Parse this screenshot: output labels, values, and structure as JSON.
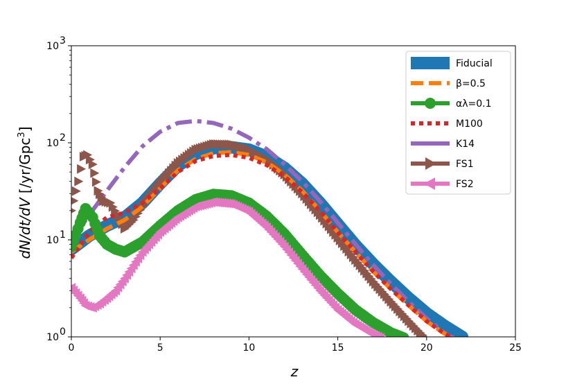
{
  "chart_data": {
    "type": "line",
    "title": "",
    "xlabel": "z",
    "ylabel": "dN/dt/dV [/yr/Gpc³]",
    "ylabel_parts": {
      "italic": "dN/dt/dV",
      "unit_open": " [/yr/Gpc",
      "unit_sup": "3",
      "unit_close": "]"
    },
    "xlim": [
      0,
      25
    ],
    "ylim": [
      1,
      1000
    ],
    "yscale": "log",
    "x_ticks": [
      "0",
      "5",
      "10",
      "15",
      "20",
      "25"
    ],
    "y_ticks": [
      {
        "base": "10",
        "exp": "0"
      },
      {
        "base": "10",
        "exp": "1"
      },
      {
        "base": "10",
        "exp": "2"
      },
      {
        "base": "10",
        "exp": "3"
      }
    ],
    "legend_position": "upper right",
    "series": [
      {
        "name": "Fiducial",
        "style": "solid-thick",
        "color": "#1f77b4",
        "x": [
          0,
          1,
          2,
          3,
          4,
          5,
          6,
          7,
          8,
          9,
          10,
          11,
          12,
          13,
          14,
          15,
          16,
          17,
          18,
          19,
          20,
          21,
          22
        ],
        "y": [
          8,
          11,
          14,
          17,
          24,
          38,
          58,
          77,
          88,
          90,
          85,
          72,
          55,
          38,
          24,
          14.5,
          8.8,
          5.6,
          3.7,
          2.5,
          1.75,
          1.3,
          1.0
        ]
      },
      {
        "name": "β=0.5",
        "style": "dashed",
        "color": "#ff7f0e",
        "x": [
          0,
          1,
          2,
          3,
          4,
          5,
          6,
          7,
          8,
          9,
          10,
          11,
          12,
          13,
          14,
          15,
          16,
          17,
          18,
          19,
          20,
          21,
          21.5
        ],
        "y": [
          7.5,
          10,
          13,
          16,
          22,
          34,
          52,
          68,
          78,
          80,
          75,
          63,
          47,
          32,
          20,
          12,
          7.5,
          4.7,
          3.1,
          2.1,
          1.45,
          1.08,
          0.98
        ]
      },
      {
        "name": "αλ=0.1",
        "style": "circles",
        "color": "#2ca02c",
        "x": [
          0,
          0.5,
          0.8,
          1.2,
          1.6,
          2,
          2.5,
          3,
          4,
          5,
          6,
          7,
          8,
          9,
          10,
          11,
          12,
          13,
          14,
          15,
          16,
          17,
          18,
          18.7
        ],
        "y": [
          8.5,
          15,
          21,
          17,
          11,
          9,
          8,
          7.5,
          9.5,
          14,
          20,
          26,
          29.5,
          28.5,
          24,
          17.5,
          11.5,
          7,
          4.3,
          2.8,
          1.9,
          1.4,
          1.1,
          0.98
        ]
      },
      {
        "name": "M100",
        "style": "dotted",
        "color": "#d62728",
        "x": [
          0,
          1,
          2,
          3,
          4,
          5,
          6,
          7,
          8,
          9,
          10,
          11,
          12,
          13,
          14,
          15,
          16,
          17,
          18,
          19,
          20,
          21,
          21.5
        ],
        "y": [
          6.5,
          12,
          17,
          19,
          24,
          34,
          50,
          65,
          73,
          75,
          70,
          59,
          45,
          31,
          20,
          12,
          7.5,
          4.7,
          3.1,
          2.1,
          1.45,
          1.08,
          0.98
        ]
      },
      {
        "name": "K14",
        "style": "dashdot",
        "color": "#9467bd",
        "x": [
          0,
          1,
          2,
          3,
          4,
          5,
          6,
          7,
          8,
          9,
          10,
          11,
          12,
          13,
          14,
          15,
          16,
          17,
          18,
          19,
          20,
          21,
          21.5
        ],
        "y": [
          9.5,
          18,
          32,
          56,
          92,
          130,
          160,
          168,
          160,
          140,
          113,
          86,
          60,
          40,
          25,
          15,
          9,
          5.5,
          3.5,
          2.3,
          1.55,
          1.1,
          0.98
        ]
      },
      {
        "name": "FS1",
        "style": "arrow-right",
        "color": "#8c564b",
        "x": [
          0,
          0.4,
          0.7,
          0.9,
          1.2,
          1.5,
          1.8,
          2.2,
          2.6,
          3,
          3.5,
          4,
          5,
          6,
          7,
          8,
          9,
          10,
          11,
          12,
          13,
          14,
          15,
          16,
          17,
          18,
          19,
          19.9
        ],
        "y": [
          20,
          40,
          72,
          75,
          60,
          32,
          25,
          24,
          18,
          13,
          16,
          22,
          38,
          62,
          85,
          97,
          96,
          86,
          68,
          47,
          30,
          18,
          10.5,
          6.2,
          3.7,
          2.3,
          1.45,
          0.98
        ]
      },
      {
        "name": "FS2",
        "style": "arrow-left",
        "color": "#e377c2",
        "x": [
          0,
          0.5,
          0.8,
          1.2,
          1.6,
          2,
          2.5,
          3,
          4,
          5,
          6,
          7,
          8,
          9,
          10,
          11,
          12,
          13,
          14,
          15,
          16,
          17,
          17.4
        ],
        "y": [
          3.2,
          2.5,
          2.1,
          2.0,
          2.2,
          2.5,
          3,
          4,
          7.5,
          12,
          17,
          22,
          24.5,
          23.5,
          19.5,
          13.5,
          8.5,
          5,
          3,
          1.9,
          1.35,
          1.05,
          0.98
        ]
      }
    ]
  }
}
